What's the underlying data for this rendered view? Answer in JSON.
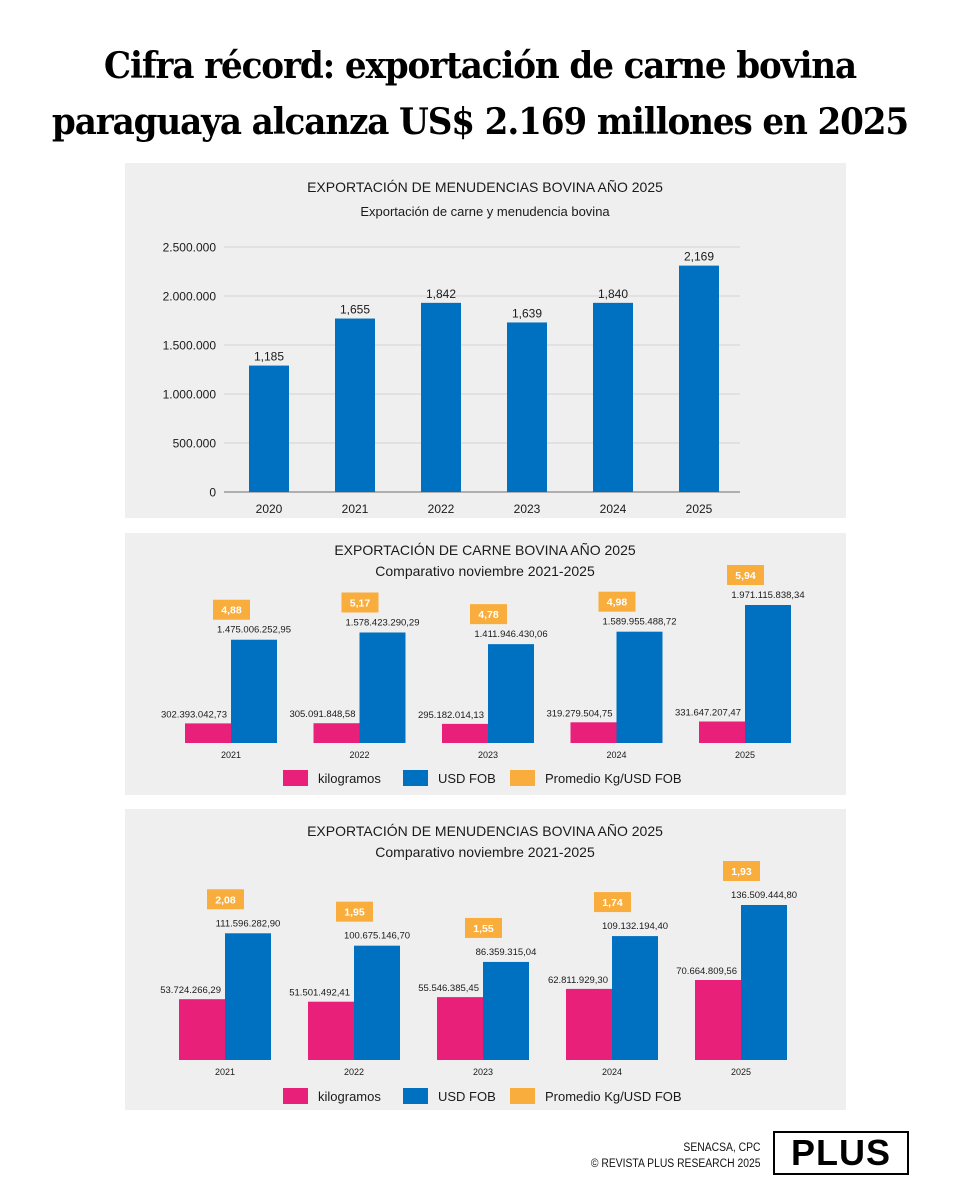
{
  "headline": {
    "line1": "Cifra récord: exportación de carne bovina",
    "line2": "paraguaya alcanza US$ 2.169 millones en 2025"
  },
  "colors": {
    "panel_bg": "#efefef",
    "blue": "#0070c0",
    "pink": "#e8207a",
    "orange": "#f9ad3c",
    "grid": "#d3d3d3",
    "text": "#1a1a1a"
  },
  "chart_data": [
    {
      "type": "bar",
      "title": "EXPORTACIÓN DE MENUDENCIAS BOVINA AÑO 2025",
      "subtitle": "Exportación de carne y menudencia bovina",
      "xlabel": "",
      "ylabel": "",
      "categories": [
        "2020",
        "2021",
        "2022",
        "2023",
        "2024",
        "2025"
      ],
      "values": [
        1185,
        1655,
        1842,
        1639,
        1840,
        2169
      ],
      "data_labels": [
        "1,185",
        "1,655",
        "1,842",
        "1,639",
        "1,840",
        "2,169"
      ],
      "bar_heights_on_axis": [
        1290000,
        1770000,
        1930000,
        1730000,
        1930000,
        2310000
      ],
      "yticks": [
        0,
        500000,
        1000000,
        1500000,
        2000000,
        2500000
      ],
      "ytick_labels": [
        "0",
        "500.000",
        "1.000.000",
        "1.500.000",
        "2.000.000",
        "2.500.000"
      ],
      "ylim": [
        0,
        2500000
      ],
      "grid": true,
      "legend": null
    },
    {
      "type": "bar",
      "title": "EXPORTACIÓN DE CARNE BOVINA AÑO 2025",
      "subtitle": "Comparativo noviembre 2021-2025",
      "categories": [
        "2021",
        "2022",
        "2023",
        "2024",
        "2025"
      ],
      "series": [
        {
          "name": "kilogramos",
          "values": [
            302393042.73,
            305091848.58,
            295182014.13,
            319279504.75,
            331647207.47
          ],
          "labels": [
            "302.393.042,73",
            "305.091.848,58",
            "295.182.014,13",
            "319.279.504,75",
            "331.647.207,47"
          ]
        },
        {
          "name": "USD FOB",
          "values": [
            1475006252.95,
            1578423290.29,
            1411946430.06,
            1589955488.72,
            1971115838.34
          ],
          "labels": [
            "1.475.006.252,95",
            "1.578.423.290,29",
            "1.411.946.430,06",
            "1.589.955.488,72",
            "1.971.115.838,34"
          ]
        },
        {
          "name": "Promedio Kg/USD FOB",
          "values": [
            4.88,
            5.17,
            4.78,
            4.98,
            5.94
          ],
          "labels": [
            "4,88",
            "5,17",
            "4,78",
            "4,98",
            "5,94"
          ]
        }
      ],
      "legend": [
        "kilogramos",
        "USD FOB",
        "Promedio Kg/USD FOB"
      ],
      "legend_position": "bottom",
      "grid": false
    },
    {
      "type": "bar",
      "title": "EXPORTACIÓN DE MENUDENCIAS BOVINA AÑO 2025",
      "subtitle": "Comparativo noviembre 2021-2025",
      "categories": [
        "2021",
        "2022",
        "2023",
        "2024",
        "2025"
      ],
      "series": [
        {
          "name": "kilogramos",
          "values": [
            53724266.29,
            51501492.41,
            55546385.45,
            62811929.3,
            70664809.56
          ],
          "labels": [
            "53.724.266,29",
            "51.501.492,41",
            "55.546.385,45",
            "62.811.929,30",
            "70.664.809,56"
          ]
        },
        {
          "name": "USD FOB",
          "values": [
            111596282.9,
            100675146.7,
            86359315.04,
            109132194.4,
            136509444.8
          ],
          "labels": [
            "111.596.282,90",
            "100.675.146,70",
            "86.359.315,04",
            "109.132.194,40",
            "136.509.444,80"
          ]
        },
        {
          "name": "Promedio Kg/USD FOB",
          "values": [
            2.08,
            1.95,
            1.55,
            1.74,
            1.93
          ],
          "labels": [
            "2,08",
            "1,95",
            "1,55",
            "1,74",
            "1,93"
          ]
        }
      ],
      "legend": [
        "kilogramos",
        "USD FOB",
        "Promedio Kg/USD FOB"
      ],
      "legend_position": "bottom",
      "grid": false
    }
  ],
  "footer": {
    "source_line1": "SENACSA, CPC",
    "source_line2": "© REVISTA PLUS RESEARCH 2025",
    "logo_text": "PLUS"
  }
}
